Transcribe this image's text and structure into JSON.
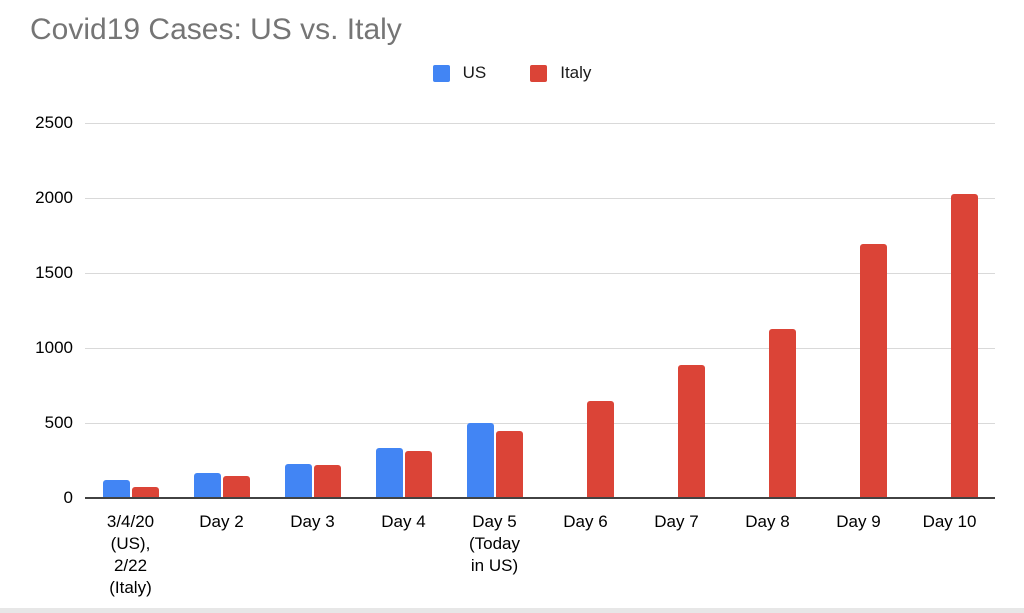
{
  "chart_data": {
    "type": "bar",
    "title": "Covid19 Cases: US vs. Italy",
    "categories": [
      "3/4/20\n(US),\n2/22\n(Italy)",
      "Day 2",
      "Day 3",
      "Day 4",
      "Day 5\n(Today\nin US)",
      "Day 6",
      "Day 7",
      "Day 8",
      "Day 9",
      "Day 10"
    ],
    "series": [
      {
        "name": "US",
        "color": "#4285f4",
        "values": [
          120,
          165,
          225,
          335,
          500,
          null,
          null,
          null,
          null,
          null
        ]
      },
      {
        "name": "Italy",
        "color": "#db4437",
        "values": [
          75,
          150,
          220,
          315,
          445,
          650,
          890,
          1130,
          1695,
          2030
        ]
      }
    ],
    "xlabel": "",
    "ylabel": "",
    "ylim": [
      0,
      2500
    ],
    "yticks": [
      0,
      500,
      1000,
      1500,
      2000,
      2500
    ],
    "grid": "horizontal",
    "legend_position": "top-center"
  },
  "colors": {
    "title_text": "#757575",
    "axis_text": "#000000",
    "gridline": "#d9d9d9",
    "axis_line": "#424242",
    "background": "#ffffff",
    "us_bar": "#4285f4",
    "italy_bar": "#db4437"
  }
}
